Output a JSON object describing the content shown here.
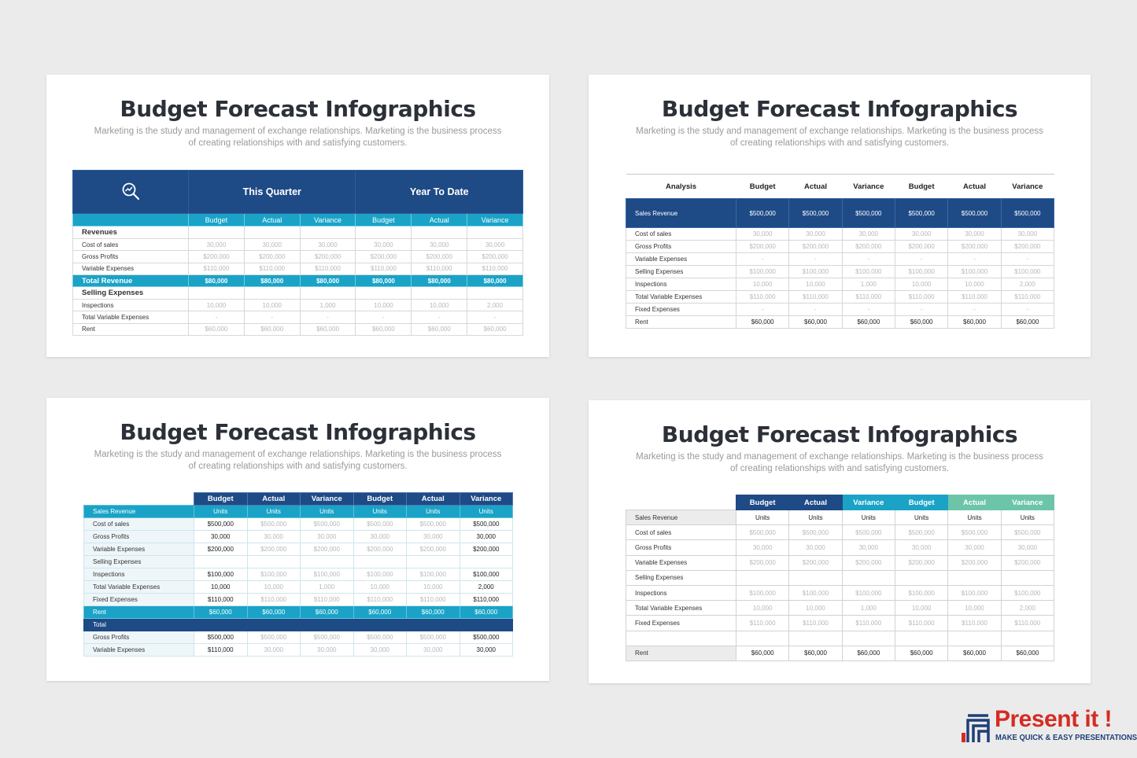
{
  "slide_title": "Budget Forecast Infographics",
  "slide_subtitle": "Marketing is the study and management of exchange relationships. Marketing is the business process of creating relationships with and satisfying customers.",
  "colors": {
    "navy": "#1e4a86",
    "teal": "#1aa3c7",
    "mint": "#6cc5a8",
    "logo_red": "#d42c23"
  },
  "slide1": {
    "icon": "magnifier-chart-icon",
    "group_headers": [
      "This Quarter",
      "Year To Date"
    ],
    "columns": [
      "Budget",
      "Actual",
      "Variance",
      "Budget",
      "Actual",
      "Variance"
    ],
    "rows": [
      {
        "label": "Revenues",
        "cells": [
          "",
          "",
          "",
          "",
          "",
          ""
        ]
      },
      {
        "label": "Cost of sales",
        "cells": [
          "30,000",
          "30,000",
          "30,000",
          "30,000",
          "30,000",
          "30,000"
        ]
      },
      {
        "label": "Gross Profits",
        "cells": [
          "$200,000",
          "$200,000",
          "$200,000",
          "$200,000",
          "$200,000",
          "$200,000"
        ]
      },
      {
        "label": "Variable Expenses",
        "cells": [
          "$110,000",
          "$110,000",
          "$110,000",
          "$110,000",
          "$110,000",
          "$110,000"
        ]
      },
      {
        "label": "Total Revenue",
        "cells": [
          "$80,000",
          "$80,000",
          "$80,000",
          "$80,000",
          "$80,000",
          "$80,000"
        ]
      },
      {
        "label": "Selling Expenses",
        "cells": [
          "",
          "",
          "",
          "",
          "",
          ""
        ]
      },
      {
        "label": "Inspections",
        "cells": [
          "10,000",
          "10,000",
          "1,000",
          "10,000",
          "10,000",
          "2,000"
        ]
      },
      {
        "label": "Total Variable Expenses",
        "cells": [
          "-",
          "-",
          "-",
          "-",
          "-",
          "-"
        ]
      },
      {
        "label": "Rent",
        "cells": [
          "$60,000",
          "$60,000",
          "$60,000",
          "$60,000",
          "$60,000",
          "$60,000"
        ]
      }
    ]
  },
  "slide2": {
    "header_label": "Analysis",
    "columns": [
      "Budget",
      "Actual",
      "Variance",
      "Budget",
      "Actual",
      "Variance"
    ],
    "rows": [
      {
        "label": "Sales Revenue",
        "cells": [
          "$500,000",
          "$500,000",
          "$500,000",
          "$500,000",
          "$500,000",
          "$500,000"
        ]
      },
      {
        "label": "Cost of sales",
        "cells": [
          "30,000",
          "30,000",
          "30,000",
          "30,000",
          "30,000",
          "30,000"
        ]
      },
      {
        "label": "Gross Profits",
        "cells": [
          "$200,000",
          "$200,000",
          "$200,000",
          "$200,000",
          "$200,000",
          "$200,000"
        ]
      },
      {
        "label": "Variable Expenses",
        "cells": [
          "-",
          "-",
          "-",
          "-",
          "-",
          "-"
        ]
      },
      {
        "label": "Selling Expenses",
        "cells": [
          "$100,000",
          "$100,000",
          "$100,000",
          "$100,000",
          "$100,000",
          "$100,000"
        ]
      },
      {
        "label": "Inspections",
        "cells": [
          "10,000",
          "10,000",
          "1,000",
          "10,000",
          "10,000",
          "2,000"
        ]
      },
      {
        "label": "Total Variable Expenses",
        "cells": [
          "$110,000",
          "$110,000",
          "$110,000",
          "$110,000",
          "$110,000",
          "$110,000"
        ]
      },
      {
        "label": "Fixed Expenses",
        "cells": [
          "-",
          "-",
          "-",
          "-",
          "-",
          "-"
        ]
      },
      {
        "label": "Rent",
        "cells": [
          "$60,000",
          "$60,000",
          "$60,000",
          "$60,000",
          "$60,000",
          "$60,000"
        ]
      }
    ]
  },
  "slide3": {
    "columns": [
      "Budget",
      "Actual",
      "Variance",
      "Budget",
      "Actual",
      "Variance"
    ],
    "rows": [
      {
        "label": "Sales Revenue",
        "cells": [
          "Units",
          "Units",
          "Units",
          "Units",
          "Units",
          "Units"
        ]
      },
      {
        "label": "Cost of sales",
        "cells": [
          "$500,000",
          "$500,000",
          "$500,000",
          "$500,000",
          "$500,000",
          "$500,000"
        ]
      },
      {
        "label": "Gross Profits",
        "cells": [
          "30,000",
          "30,000",
          "30,000",
          "30,000",
          "30,000",
          "30,000"
        ]
      },
      {
        "label": "Variable Expenses",
        "cells": [
          "$200,000",
          "$200,000",
          "$200,000",
          "$200,000",
          "$200,000",
          "$200,000"
        ]
      },
      {
        "label": "Selling Expenses",
        "cells": [
          "",
          "",
          "",
          "",
          "",
          ""
        ]
      },
      {
        "label": "Inspections",
        "cells": [
          "$100,000",
          "$100,000",
          "$100,000",
          "$100,000",
          "$100,000",
          "$100,000"
        ]
      },
      {
        "label": "Total Variable Expenses",
        "cells": [
          "10,000",
          "10,000",
          "1,000",
          "10,000",
          "10,000",
          "2,000"
        ]
      },
      {
        "label": "Fixed Expenses",
        "cells": [
          "$110,000",
          "$110,000",
          "$110,000",
          "$110,000",
          "$110,000",
          "$110,000"
        ]
      },
      {
        "label": "Rent",
        "cells": [
          "$60,000",
          "$60,000",
          "$60,000",
          "$60,000",
          "$60,000",
          "$60,000"
        ]
      },
      {
        "label": "Total",
        "cells": [
          "",
          "",
          "",
          "",
          "",
          ""
        ]
      },
      {
        "label": "Gross Profits",
        "cells": [
          "$500,000",
          "$500,000",
          "$500,000",
          "$500,000",
          "$500,000",
          "$500,000"
        ]
      },
      {
        "label": "Variable Expenses",
        "cells": [
          "$110,000",
          "30,000",
          "30,000",
          "30,000",
          "30,000",
          "30,000"
        ]
      }
    ]
  },
  "slide4": {
    "columns": [
      "Budget",
      "Actual",
      "Variance",
      "Budget",
      "Actual",
      "Variance"
    ],
    "rows": [
      {
        "label": "Sales Revenue",
        "cells": [
          "Units",
          "Units",
          "Units",
          "Units",
          "Units",
          "Units"
        ]
      },
      {
        "label": "Cost of sales",
        "cells": [
          "$500,000",
          "$500,000",
          "$500,000",
          "$500,000",
          "$500,000",
          "$500,000"
        ]
      },
      {
        "label": "Gross Profits",
        "cells": [
          "30,000",
          "30,000",
          "30,000",
          "30,000",
          "30,000",
          "30,000"
        ]
      },
      {
        "label": "Variable Expenses",
        "cells": [
          "$200,000",
          "$200,000",
          "$200,000",
          "$200,000",
          "$200,000",
          "$200,000"
        ]
      },
      {
        "label": "Selling Expenses",
        "cells": [
          "",
          "",
          "",
          "",
          "",
          ""
        ]
      },
      {
        "label": "Inspections",
        "cells": [
          "$100,000",
          "$100,000",
          "$100,000",
          "$100,000",
          "$100,000",
          "$100,000"
        ]
      },
      {
        "label": "Total Variable Expenses",
        "cells": [
          "10,000",
          "10,000",
          "1,000",
          "10,000",
          "10,000",
          "2,000"
        ]
      },
      {
        "label": "Fixed Expenses",
        "cells": [
          "$110,000",
          "$110,000",
          "$110,000",
          "$110,000",
          "$110,000",
          "$110,000"
        ]
      },
      {
        "label": "",
        "cells": [
          "",
          "",
          "",
          "",
          "",
          ""
        ]
      },
      {
        "label": "Rent",
        "cells": [
          "$60,000",
          "$60,000",
          "$60,000",
          "$60,000",
          "$60,000",
          "$60,000"
        ]
      }
    ]
  },
  "logo": {
    "brand": "Present it !",
    "tagline": "MAKE QUICK & EASY PRESENTATIONS",
    "icon": "bar-stairs-logo-icon"
  }
}
